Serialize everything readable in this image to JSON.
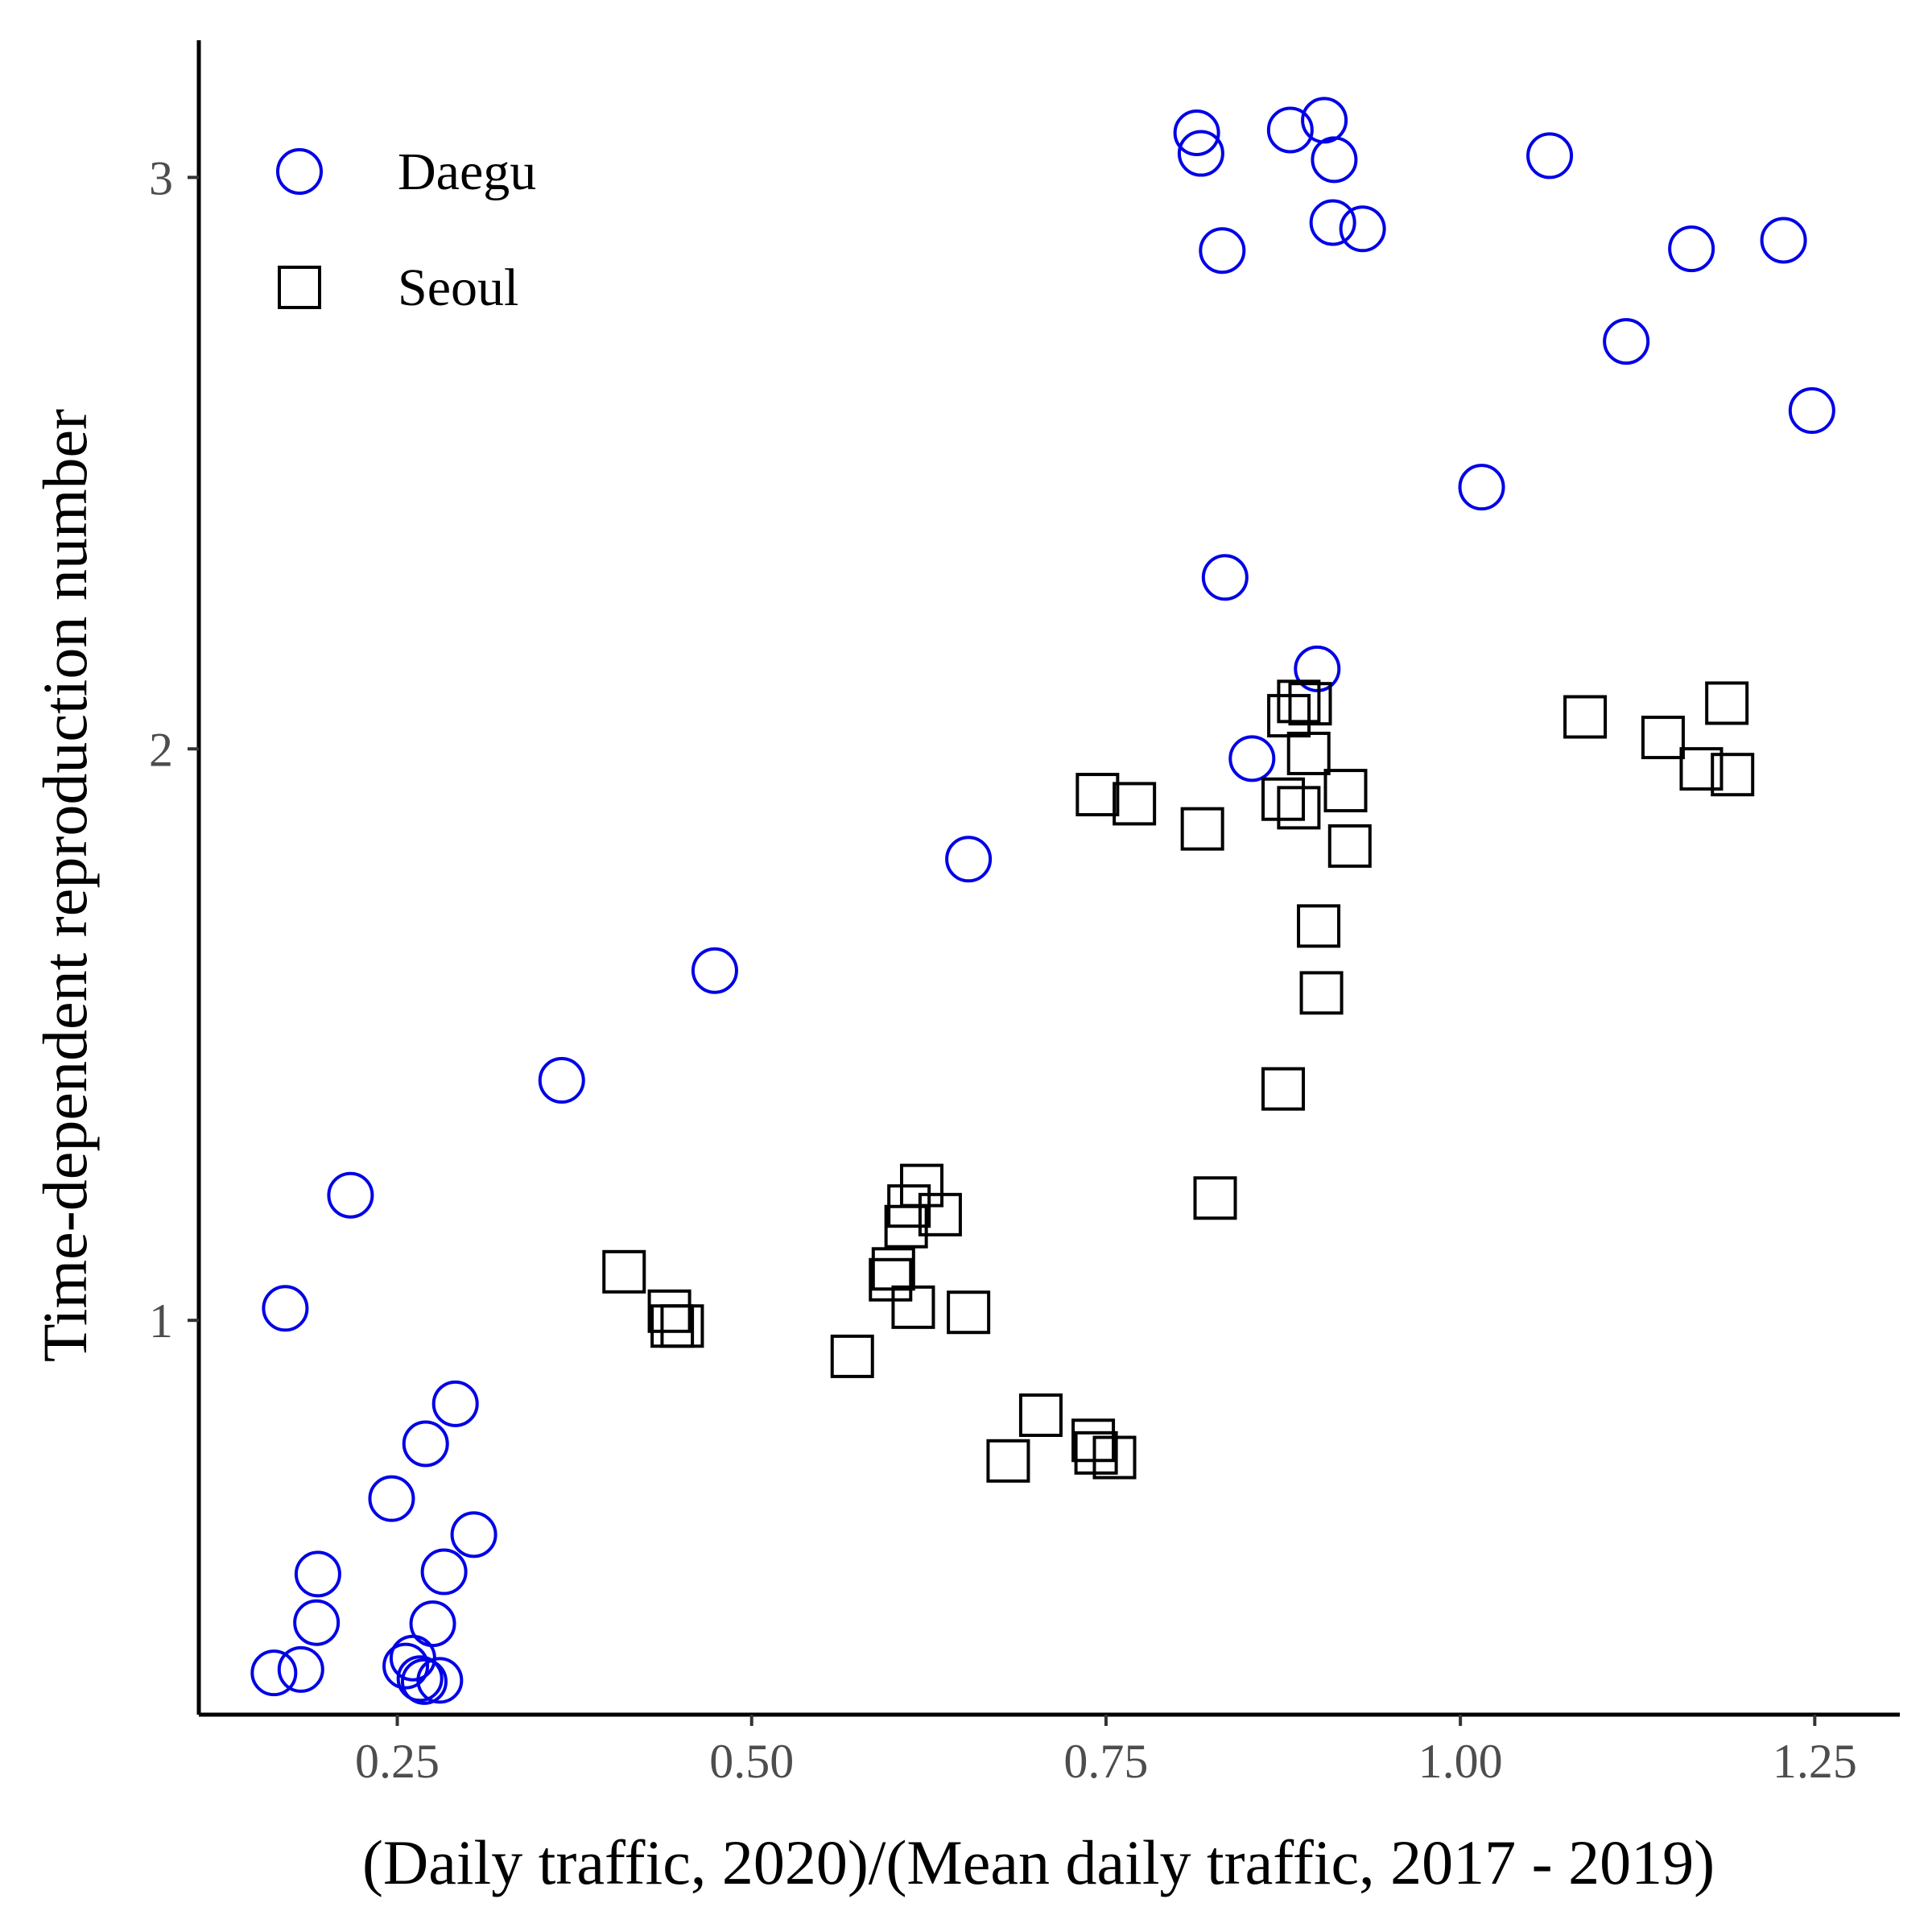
{
  "chart_data": {
    "type": "scatter",
    "xlabel": "(Daily traffic, 2020)/(Mean daily traffic, 2017 - 2019)",
    "ylabel": "Time-dependent reproduction number",
    "xlim": [
      0.11,
      1.31
    ],
    "ylim": [
      0.31,
      3.24
    ],
    "x_ticks": [
      {
        "value": 0.25,
        "label": "0.25"
      },
      {
        "value": 0.5,
        "label": "0.50"
      },
      {
        "value": 0.75,
        "label": "0.75"
      },
      {
        "value": 1.0,
        "label": "1.00"
      },
      {
        "value": 1.25,
        "label": "1.25"
      }
    ],
    "y_ticks": [
      {
        "value": 1,
        "label": "1"
      },
      {
        "value": 2,
        "label": "2"
      },
      {
        "value": 3,
        "label": "3"
      }
    ],
    "grid": false,
    "legend_position": "top-left",
    "series": [
      {
        "name": "Daegu",
        "marker": "open-circle",
        "color": "#0000e6",
        "points": [
          [
            0.814,
            3.078
          ],
          [
            0.817,
            3.042
          ],
          [
            0.88,
            3.083
          ],
          [
            0.904,
            3.1
          ],
          [
            0.911,
            3.031
          ],
          [
            0.832,
            2.872
          ],
          [
            0.91,
            2.921
          ],
          [
            0.931,
            2.91
          ],
          [
            1.063,
            3.038
          ],
          [
            1.228,
            2.89
          ],
          [
            1.163,
            2.875
          ],
          [
            1.117,
            2.713
          ],
          [
            1.248,
            2.592
          ],
          [
            1.015,
            2.458
          ],
          [
            0.834,
            2.3
          ],
          [
            0.899,
            2.14
          ],
          [
            0.853,
            1.983
          ],
          [
            0.653,
            1.807
          ],
          [
            0.474,
            1.612
          ],
          [
            0.366,
            1.42
          ],
          [
            0.217,
            1.219
          ],
          [
            0.171,
            1.021
          ],
          [
            0.291,
            0.854
          ],
          [
            0.27,
            0.784
          ],
          [
            0.246,
            0.688
          ],
          [
            0.304,
            0.625
          ],
          [
            0.283,
            0.56
          ],
          [
            0.194,
            0.556
          ],
          [
            0.193,
            0.471
          ],
          [
            0.275,
            0.469
          ],
          [
            0.261,
            0.409
          ],
          [
            0.256,
            0.395
          ],
          [
            0.182,
            0.389
          ],
          [
            0.163,
            0.383
          ],
          [
            0.266,
            0.373
          ],
          [
            0.269,
            0.368
          ],
          [
            0.28,
            0.37
          ]
        ]
      },
      {
        "name": "Seoul",
        "marker": "open-square",
        "color": "#000000",
        "points": [
          [
            0.886,
            2.083
          ],
          [
            0.894,
            2.079
          ],
          [
            0.879,
            2.058
          ],
          [
            0.893,
            1.992
          ],
          [
            0.875,
            1.912
          ],
          [
            0.886,
            1.897
          ],
          [
            0.919,
            1.927
          ],
          [
            0.922,
            1.83
          ],
          [
            0.744,
            1.92
          ],
          [
            0.77,
            1.904
          ],
          [
            0.818,
            1.86
          ],
          [
            0.9,
            1.69
          ],
          [
            0.902,
            1.573
          ],
          [
            1.088,
            2.056
          ],
          [
            1.143,
            2.02
          ],
          [
            1.188,
            2.08
          ],
          [
            1.17,
            1.965
          ],
          [
            1.192,
            1.955
          ],
          [
            0.875,
            1.405
          ],
          [
            0.827,
            1.214
          ],
          [
            0.62,
            1.236
          ],
          [
            0.611,
            1.2
          ],
          [
            0.633,
            1.185
          ],
          [
            0.609,
            1.164
          ],
          [
            0.6,
            1.09
          ],
          [
            0.598,
            1.071
          ],
          [
            0.614,
            1.023
          ],
          [
            0.653,
            1.014
          ],
          [
            0.41,
            1.085
          ],
          [
            0.442,
            1.016
          ],
          [
            0.444,
            0.99
          ],
          [
            0.451,
            0.99
          ],
          [
            0.571,
            0.937
          ],
          [
            0.704,
            0.834
          ],
          [
            0.741,
            0.79
          ],
          [
            0.743,
            0.768
          ],
          [
            0.756,
            0.76
          ],
          [
            0.681,
            0.754
          ]
        ]
      }
    ]
  }
}
